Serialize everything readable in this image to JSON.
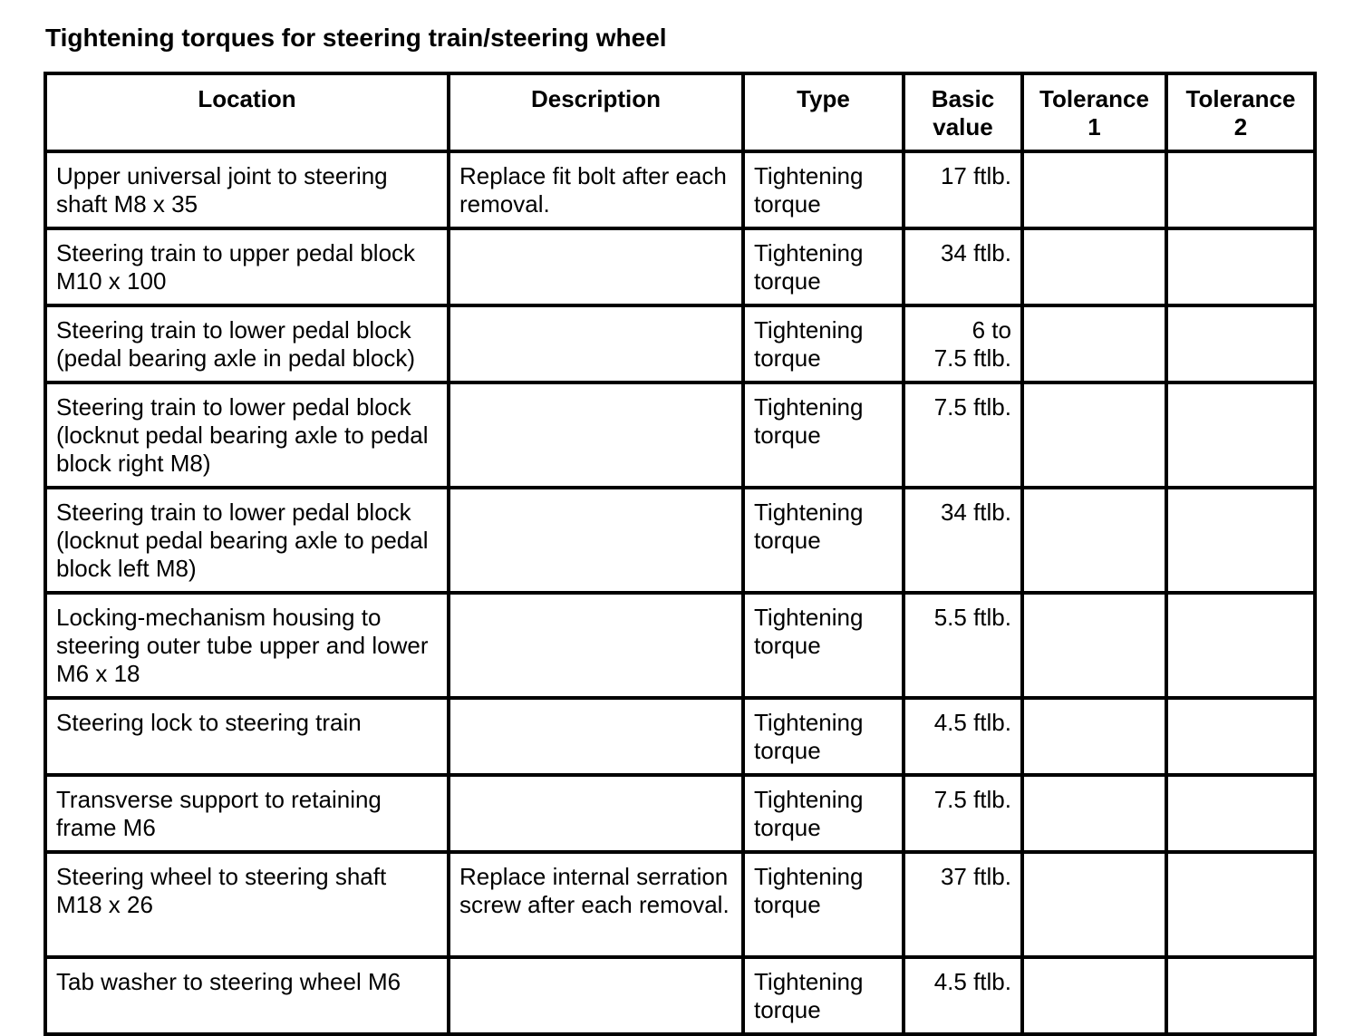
{
  "title": "Tightening torques for steering train/steering wheel",
  "table": {
    "headers": {
      "location": "Location",
      "description": "Description",
      "type": "Type",
      "basic_value_line1": "Basic",
      "basic_value_line2": "value",
      "tolerance1_line1": "Tolerance",
      "tolerance1_line2": "1",
      "tolerance2_line1": "Tolerance",
      "tolerance2_line2": "2"
    },
    "rows": [
      {
        "location": "Upper universal joint to steering shaft M8 x 35",
        "description": "Replace fit bolt after each removal.",
        "type": "Tightening torque",
        "basic_value": "17 ftlb.",
        "tolerance1": "",
        "tolerance2": ""
      },
      {
        "location": "Steering train to upper pedal block M10 x 100",
        "description": "",
        "type": "Tightening torque",
        "basic_value": "34 ftlb.",
        "tolerance1": "",
        "tolerance2": ""
      },
      {
        "location": "Steering train to lower pedal block (pedal bearing axle in pedal block)",
        "description": "",
        "type": "Tightening torque",
        "basic_value_line1": "6 to",
        "basic_value_line2": "7.5 ftlb.",
        "tolerance1": "",
        "tolerance2": ""
      },
      {
        "location": "Steering train to lower pedal block (locknut pedal bearing axle to pedal block right M8)",
        "description": "",
        "type": "Tightening torque",
        "basic_value": "7.5 ftlb.",
        "tolerance1": "",
        "tolerance2": ""
      },
      {
        "location": "Steering train to lower pedal block (locknut pedal bearing axle to pedal block left M8)",
        "description": "",
        "type": "Tightening torque",
        "basic_value": "34 ftlb.",
        "tolerance1": "",
        "tolerance2": ""
      },
      {
        "location": "Locking-mechanism housing to steering outer tube upper and lower M6 x 18",
        "description": "",
        "type": "Tightening torque",
        "basic_value": "5.5 ftlb.",
        "tolerance1": "",
        "tolerance2": ""
      },
      {
        "location": "Steering lock to steering train",
        "description": "",
        "type": "Tightening torque",
        "basic_value": "4.5 ftlb.",
        "tolerance1": "",
        "tolerance2": ""
      },
      {
        "location": "Transverse support to retaining frame M6",
        "description": "",
        "type": "Tightening torque",
        "basic_value": "7.5 ftlb.",
        "tolerance1": "",
        "tolerance2": ""
      },
      {
        "location": "Steering wheel to steering shaft M18 x 26",
        "description": "Replace internal serration screw after each removal.",
        "type": "Tightening torque",
        "basic_value": "37 ftlb.",
        "tolerance1": "",
        "tolerance2": ""
      },
      {
        "location": "Tab washer to steering wheel M6",
        "description": "",
        "type": "Tightening torque",
        "basic_value": "4.5 ftlb.",
        "tolerance1": "",
        "tolerance2": ""
      }
    ]
  }
}
